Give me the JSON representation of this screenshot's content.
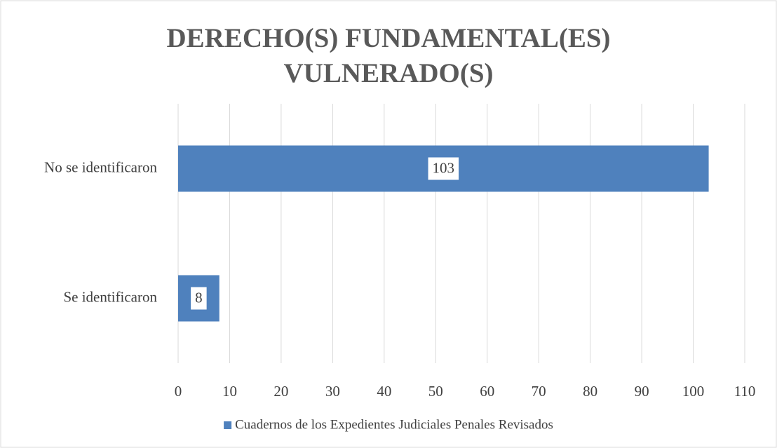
{
  "chart_data": {
    "type": "hbar",
    "title": "DERECHO(S) FUNDAMENTAL(ES) VULNERADO(S)",
    "categories": [
      "No se identificaron",
      "Se identificaron"
    ],
    "series": [
      {
        "name": "Cuadernos de los Expedientes Judiciales Penales Revisados",
        "color": "#4f81bd",
        "values": [
          103,
          8
        ]
      }
    ],
    "xlim": [
      0,
      110
    ],
    "xticks": [
      0,
      10,
      20,
      30,
      40,
      50,
      60,
      70,
      80,
      90,
      100,
      110
    ],
    "grid": true,
    "legend": "bottom"
  }
}
